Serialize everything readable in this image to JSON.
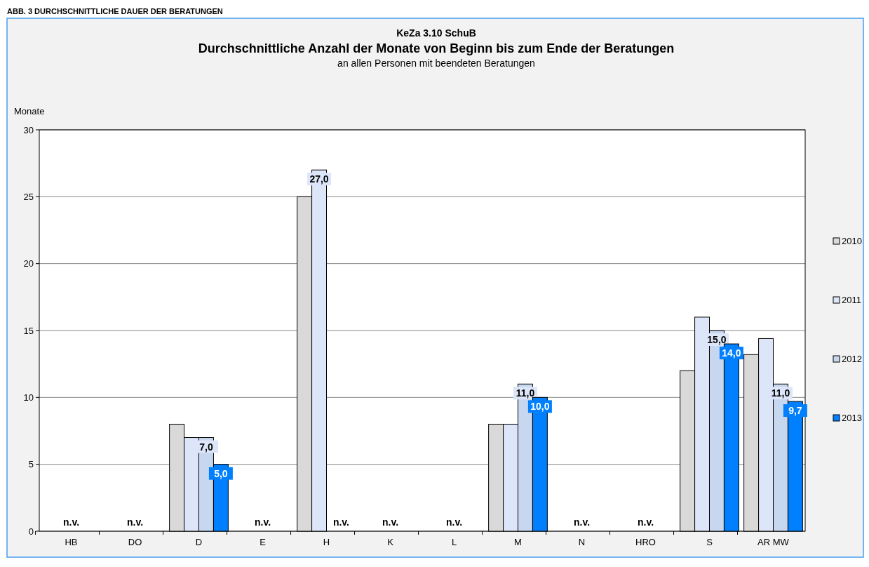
{
  "chart_data": {
    "type": "bar",
    "title": "Durchschnittliche Anzahl der Monate von Beginn bis zum Ende der Beratungen",
    "subtitle": "an allen Personen mit beendeten Beratungen",
    "ylabel": "Monate",
    "annotations": [
      "ABB. 3 DURCHSCHNITTLICHE DAUER DER BERATUNGEN",
      "KeZa 3.10 SchuB",
      "n.v.",
      "n.v.",
      "n.v.",
      "n.v.",
      "n.v.",
      "n.v.",
      "n.v.",
      "n.v."
    ],
    "categories": [
      "HB",
      "DO",
      "D",
      "E",
      "H",
      "K",
      "L",
      "M",
      "N",
      "HRO",
      "S",
      "AR MW"
    ],
    "series": [
      {
        "name": "2010",
        "color": "#d9d9d9",
        "values": [
          null,
          null,
          8,
          null,
          25,
          null,
          null,
          8,
          null,
          null,
          12,
          13.2
        ]
      },
      {
        "name": "2011",
        "color": "#dce6f8",
        "values": [
          null,
          null,
          7,
          null,
          27,
          null,
          null,
          8,
          null,
          null,
          16,
          14.4
        ],
        "value_labels": [
          null,
          null,
          null,
          null,
          "27,0",
          null,
          null,
          null,
          null,
          null,
          null,
          null
        ]
      },
      {
        "name": "2012",
        "color": "#c6d7ef",
        "values": [
          null,
          null,
          7,
          null,
          null,
          null,
          null,
          11,
          null,
          null,
          15,
          11
        ],
        "value_labels": [
          null,
          null,
          "7,0",
          null,
          null,
          null,
          null,
          "11,0",
          null,
          null,
          "15,0",
          "11,0"
        ]
      },
      {
        "name": "2013",
        "color": "#0080ff",
        "values": [
          null,
          null,
          5,
          null,
          null,
          null,
          null,
          10,
          null,
          null,
          14,
          9.7
        ],
        "value_labels": [
          null,
          null,
          "5,0",
          null,
          null,
          null,
          null,
          "10,0",
          null,
          null,
          "14,0",
          "9,7"
        ]
      }
    ],
    "ylim": [
      0,
      30
    ],
    "yticks": [
      0,
      5,
      10,
      15,
      20,
      25,
      30
    ],
    "grid": "y",
    "legend": "right"
  }
}
